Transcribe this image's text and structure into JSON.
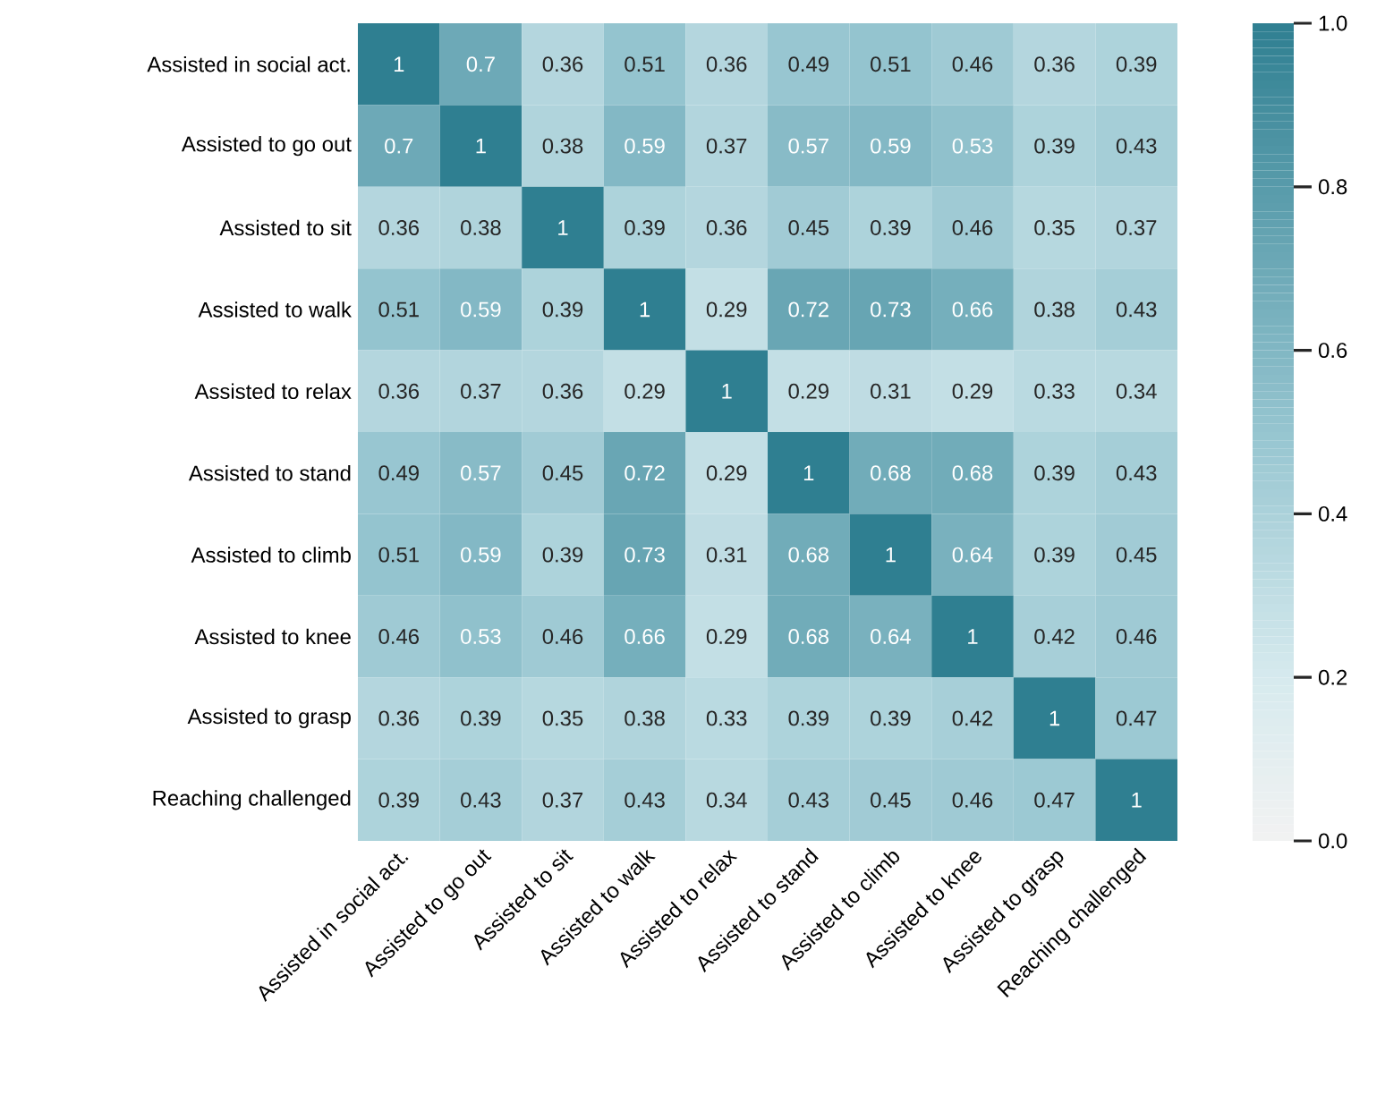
{
  "chart_data": {
    "type": "heatmap",
    "categories": [
      "Assisted in social act.",
      "Assisted to go out",
      "Assisted to sit",
      "Assisted to walk",
      "Assisted to relax",
      "Assisted to stand",
      "Assisted to climb",
      "Assisted to knee",
      "Assisted to grasp",
      "Reaching challenged"
    ],
    "y_categories": [
      "Assisted in social act.",
      "Assisted to go out",
      "Assisted to sit",
      "Assisted to walk",
      "Assisted to relax",
      "Assisted to stand",
      "Assisted to climb",
      "Assisted to knee",
      "Assisted to grasp",
      "Reaching challenged"
    ],
    "cells": [
      [
        1,
        0.7,
        0.36,
        0.51,
        0.36,
        0.49,
        0.51,
        0.46,
        0.36,
        0.39
      ],
      [
        0.7,
        1,
        0.38,
        0.59,
        0.37,
        0.57,
        0.59,
        0.53,
        0.39,
        0.43
      ],
      [
        0.36,
        0.38,
        1,
        0.39,
        0.36,
        0.45,
        0.39,
        0.46,
        0.35,
        0.37
      ],
      [
        0.51,
        0.59,
        0.39,
        1,
        0.29,
        0.72,
        0.73,
        0.66,
        0.38,
        0.43
      ],
      [
        0.36,
        0.37,
        0.36,
        0.29,
        1,
        0.29,
        0.31,
        0.29,
        0.33,
        0.34
      ],
      [
        0.49,
        0.57,
        0.45,
        0.72,
        0.29,
        1,
        0.68,
        0.68,
        0.39,
        0.43
      ],
      [
        0.51,
        0.59,
        0.39,
        0.73,
        0.31,
        0.68,
        1,
        0.64,
        0.39,
        0.45
      ],
      [
        0.46,
        0.53,
        0.46,
        0.66,
        0.29,
        0.68,
        0.64,
        1,
        0.42,
        0.46
      ],
      [
        0.36,
        0.39,
        0.35,
        0.38,
        0.33,
        0.39,
        0.39,
        0.42,
        1,
        0.47
      ],
      [
        0.39,
        0.43,
        0.37,
        0.43,
        0.34,
        0.43,
        0.45,
        0.46,
        0.47,
        1
      ]
    ],
    "clim": [
      0,
      1
    ],
    "cticks": [
      {
        "value": 0,
        "label": "0.0"
      },
      0.2,
      0.4,
      0.6,
      0.8,
      {
        "value": 1,
        "label": "1.0"
      }
    ],
    "data_labels": true
  }
}
